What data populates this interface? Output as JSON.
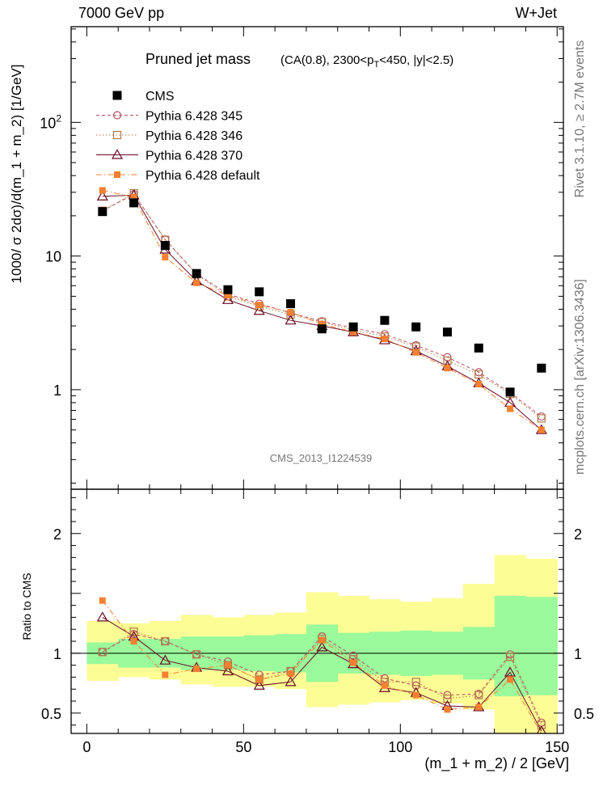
{
  "header": {
    "left_label": "7000 GeV pp",
    "right_label": "W+Jet"
  },
  "side_labels": {
    "rivet": "Rivet 3.1.10, ≥ 2.7M events",
    "mcplots": "mcplots.cern.ch [arXiv:1306.3436]"
  },
  "watermark": "CMS_2013_I1224539",
  "colors": {
    "cms": "#000000",
    "p345": "#b85060",
    "p346": "#b07848",
    "p370": "#6a0a22",
    "pdefault": "#f58030",
    "band_green": "#9bfa9b",
    "band_yellow": "#fdfd95"
  },
  "chart_data": [
    {
      "type": "scatter",
      "scale": "log",
      "title_main": "Pruned jet mass",
      "title_detail": {
        "prefix": "(CA(0.8), 2300<p",
        "subscript": "T",
        "suffix": "<450, |y|<2.5)"
      },
      "ylabel": "1000/ σ 2dσ)/d(m_1 + m_2) [1/GeV]",
      "xlim": [
        -5,
        152
      ],
      "ylim": [
        0.18,
        520
      ],
      "ytick_labels": [
        {
          "value": 1,
          "base": "1",
          "exp": ""
        },
        {
          "value": 10,
          "base": "10",
          "exp": ""
        },
        {
          "value": 100,
          "base": "10",
          "exp": "2"
        }
      ],
      "x": [
        5,
        15,
        25,
        35,
        45,
        55,
        65,
        75,
        85,
        95,
        105,
        115,
        125,
        135,
        145
      ],
      "series": [
        {
          "name": "CMS",
          "key": "cms",
          "marker": "square",
          "line": "none",
          "values": [
            21.5,
            25,
            12,
            7.4,
            5.6,
            5.4,
            4.4,
            2.85,
            2.95,
            3.3,
            2.95,
            2.7,
            2.05,
            0.96,
            1.45
          ]
        },
        {
          "name": "Pythia 6.428 345",
          "key": "p345",
          "marker": "circle",
          "line": "dashed",
          "values": [
            21.8,
            29,
            13.3,
            7.35,
            5.2,
            4.4,
            3.75,
            3.25,
            2.9,
            2.6,
            2.15,
            1.75,
            1.35,
            0.95,
            0.63
          ]
        },
        {
          "name": "Pythia 6.428 346",
          "key": "p346",
          "marker": "open-square",
          "line": "dotted",
          "values": [
            21.8,
            29.5,
            13.2,
            7.3,
            5.0,
            4.2,
            3.65,
            3.2,
            2.8,
            2.5,
            2.1,
            1.65,
            1.3,
            0.93,
            0.61
          ]
        },
        {
          "name": "Pythia 6.428 370",
          "key": "p370",
          "marker": "triangle",
          "line": "solid",
          "values": [
            28,
            28.5,
            11.2,
            6.5,
            4.7,
            3.9,
            3.3,
            3.0,
            2.7,
            2.35,
            1.95,
            1.5,
            1.12,
            0.8,
            0.5
          ]
        },
        {
          "name": "Pythia 6.428 default",
          "key": "pdefault",
          "marker": "small-square",
          "line": "dashdot",
          "values": [
            31,
            27.5,
            9.8,
            6.3,
            5.1,
            4.3,
            3.8,
            3.1,
            2.7,
            2.4,
            1.9,
            1.45,
            1.1,
            0.72,
            0.5
          ]
        }
      ]
    },
    {
      "type": "scatter",
      "scale": "linear",
      "ylabel": "Ratio to CMS",
      "xlabel": "(m_1 + m_2) / 2 [GeV]",
      "xlim": [
        -5,
        152
      ],
      "ylim": [
        0.33,
        2.37
      ],
      "xticks": [
        0,
        50,
        100,
        150
      ],
      "yticks": [
        0.5,
        1,
        2
      ],
      "x_edges": [
        0,
        10,
        20,
        30,
        40,
        50,
        60,
        70,
        80,
        90,
        100,
        110,
        120,
        130,
        140,
        150
      ],
      "band_green": [
        [
          0.91,
          1.09
        ],
        [
          0.88,
          1.12
        ],
        [
          0.88,
          1.12
        ],
        [
          0.86,
          1.14
        ],
        [
          0.86,
          1.14
        ],
        [
          0.85,
          1.15
        ],
        [
          0.84,
          1.16
        ],
        [
          0.76,
          1.24
        ],
        [
          0.83,
          1.17
        ],
        [
          0.82,
          1.18
        ],
        [
          0.81,
          1.19
        ],
        [
          0.82,
          1.18
        ],
        [
          0.78,
          1.22
        ],
        [
          0.64,
          1.48
        ],
        [
          0.65,
          1.47
        ]
      ],
      "band_yellow": [
        [
          0.77,
          1.27
        ],
        [
          0.8,
          1.25
        ],
        [
          0.78,
          1.27
        ],
        [
          0.74,
          1.32
        ],
        [
          0.72,
          1.3
        ],
        [
          0.72,
          1.32
        ],
        [
          0.7,
          1.34
        ],
        [
          0.55,
          1.51
        ],
        [
          0.57,
          1.48
        ],
        [
          0.59,
          1.45
        ],
        [
          0.61,
          1.43
        ],
        [
          0.58,
          1.46
        ],
        [
          0.53,
          1.58
        ],
        [
          0.33,
          1.82
        ],
        [
          0.33,
          1.79
        ]
      ],
      "series": [
        {
          "key": "p345",
          "marker": "circle",
          "line": "dashed",
          "values": [
            1.01,
            1.16,
            1.1,
            0.99,
            0.93,
            0.82,
            0.85,
            1.14,
            0.98,
            0.79,
            0.73,
            0.65,
            0.66,
            0.99,
            0.42
          ]
        },
        {
          "key": "p346",
          "marker": "open-square",
          "line": "dotted",
          "values": [
            1.01,
            1.18,
            1.1,
            0.99,
            0.9,
            0.78,
            0.85,
            1.12,
            0.95,
            0.76,
            0.76,
            0.62,
            0.65,
            0.97,
            0.4
          ]
        },
        {
          "key": "p370",
          "marker": "triangle",
          "line": "solid",
          "values": [
            1.3,
            1.14,
            0.94,
            0.88,
            0.85,
            0.73,
            0.76,
            1.05,
            0.91,
            0.71,
            0.67,
            0.56,
            0.55,
            0.84,
            0.35
          ]
        },
        {
          "key": "pdefault",
          "marker": "small-square",
          "line": "dashdot",
          "values": [
            1.44,
            1.1,
            0.82,
            0.87,
            0.9,
            0.78,
            0.83,
            1.11,
            0.92,
            0.73,
            0.65,
            0.53,
            0.55,
            0.78,
            0.33
          ]
        }
      ]
    }
  ]
}
